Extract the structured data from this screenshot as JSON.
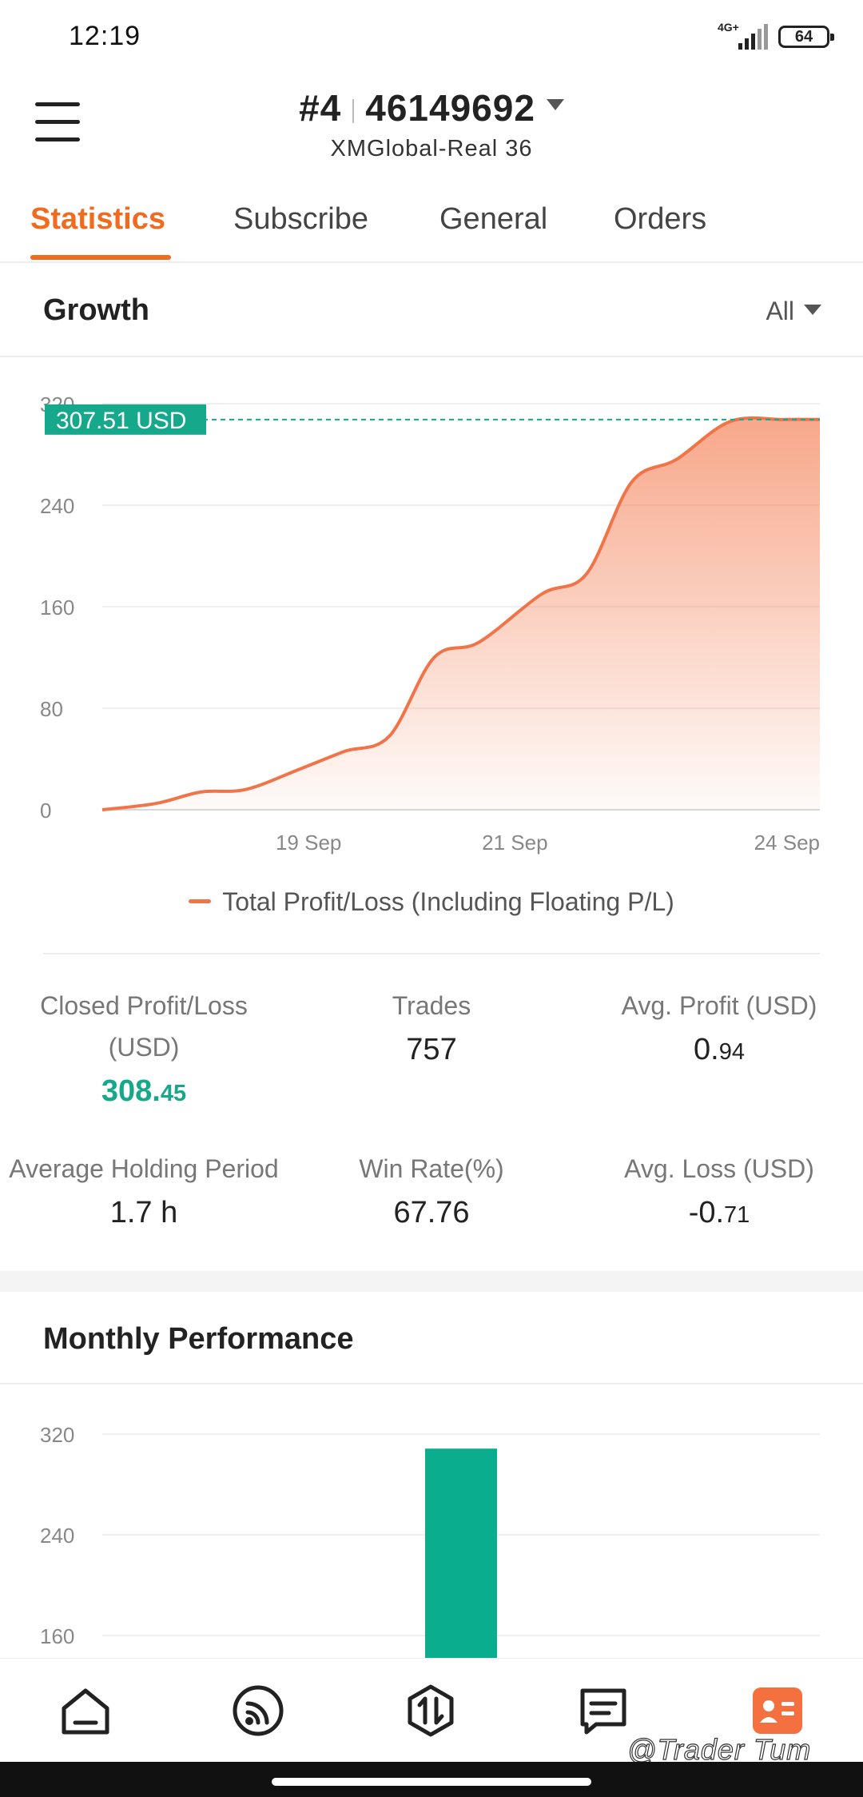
{
  "status_bar": {
    "time": "12:19",
    "network": "4G+",
    "battery": "64"
  },
  "header": {
    "account_prefix": "#4",
    "account_number": "46149692",
    "server": "XMGlobal-Real 36"
  },
  "tabs": [
    {
      "label": "Statistics",
      "active": true
    },
    {
      "label": "Subscribe",
      "active": false
    },
    {
      "label": "General",
      "active": false
    },
    {
      "label": "Orders",
      "active": false
    }
  ],
  "growth": {
    "title": "Growth",
    "filter": "All",
    "legend": "Total Profit/Loss (Including Floating P/L)",
    "current_label": "307.51 USD"
  },
  "stats": {
    "closed_pl": {
      "label_line1": "Closed Profit/Loss",
      "label_line2": "(USD)",
      "value_int": "308.",
      "value_dec": "45"
    },
    "trades": {
      "label": "Trades",
      "value": "757"
    },
    "avg_profit": {
      "label": "Avg. Profit (USD)",
      "value_int": "0.",
      "value_dec": "94"
    },
    "avg_holding": {
      "label": "Average Holding Period",
      "value": "1.7 h"
    },
    "win_rate": {
      "label": "Win Rate(%)",
      "value": "67.76"
    },
    "avg_loss": {
      "label": "Avg. Loss (USD)",
      "value_int": "-0.",
      "value_dec": "71"
    }
  },
  "monthly": {
    "title": "Monthly Performance"
  },
  "bottom_nav": [
    "home-icon",
    "feed-icon",
    "trade-icon",
    "messages-icon",
    "profile-card-icon"
  ],
  "watermark": "@Trader Tum",
  "colors": {
    "accent": "#f06a1f",
    "line": "#f07448",
    "green": "#16a88b"
  },
  "chart_data": [
    {
      "type": "area",
      "title": "Growth",
      "series": [
        {
          "name": "Total Profit/Loss (Including Floating P/L)",
          "values": [
            [
              0,
              0
            ],
            [
              0.6,
              5
            ],
            [
              1.1,
              14
            ],
            [
              1.6,
              16
            ],
            [
              2.2,
              32
            ],
            [
              2.7,
              46
            ],
            [
              3.2,
              58
            ],
            [
              3.7,
              120
            ],
            [
              4.2,
              132
            ],
            [
              4.9,
              170
            ],
            [
              5.4,
              186
            ],
            [
              5.9,
              258
            ],
            [
              6.4,
              276
            ],
            [
              7.0,
              306
            ],
            [
              7.6,
              307.5
            ],
            [
              8.0,
              307.51
            ]
          ]
        }
      ],
      "x_ticks": [
        {
          "x": 2.3,
          "label": "19 Sep"
        },
        {
          "x": 4.6,
          "label": "21 Sep"
        },
        {
          "x": 8.0,
          "label": "24 Sep"
        }
      ],
      "y_ticks": [
        0,
        80,
        160,
        240,
        320
      ],
      "ylim": [
        0,
        320
      ],
      "xlim": [
        0,
        8
      ],
      "reference_line": 307.51,
      "grid": true,
      "legend_position": "bottom"
    },
    {
      "type": "bar",
      "title": "Monthly Performance",
      "categories": [
        ""
      ],
      "values": [
        308.45
      ],
      "y_ticks": [
        160,
        240,
        320
      ],
      "ylim": [
        0,
        320
      ],
      "grid": true
    }
  ]
}
